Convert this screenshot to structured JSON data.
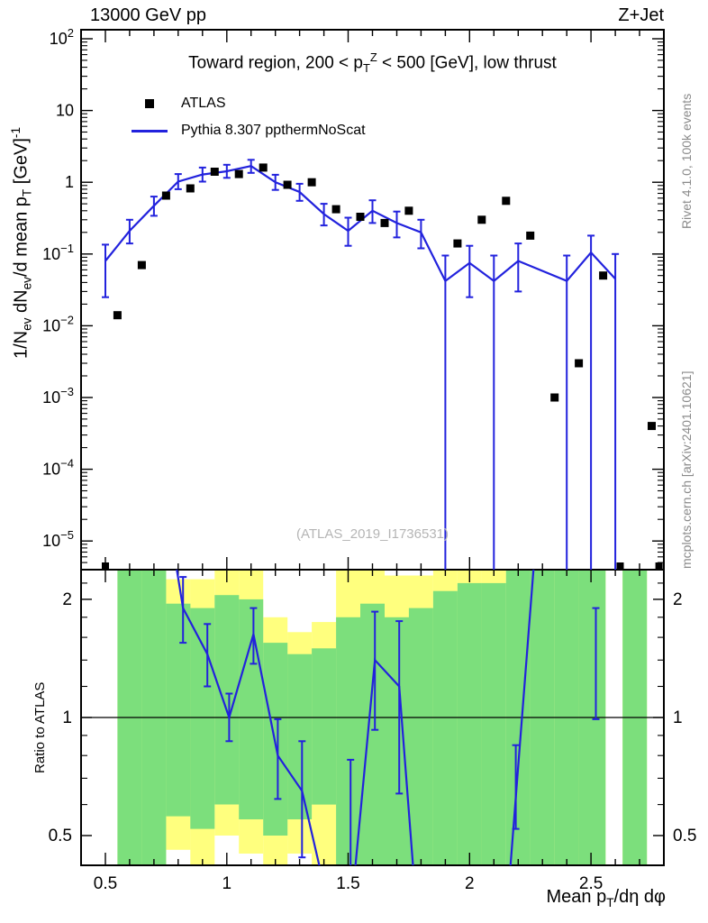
{
  "header": {
    "left": "13000 GeV pp",
    "right": "Z+Jet"
  },
  "watermark": "(ATLAS_2019_I1736531)",
  "side_notes": {
    "top": "Rivet 4.1.0,  100k events",
    "bottom": "mcplots.cern.ch [arXiv:2401.10621]"
  },
  "colors": {
    "mc": "#2222dd",
    "marker": "#000000",
    "band_inner": "#7cdf7c",
    "band_outer": "#ffff7e",
    "watermark": "#b5b5b5",
    "side_note": "#8a8a8a"
  },
  "chart_data": {
    "type": "line",
    "title": "Toward region, 200 < p_{T}^{Z} < 500 [GeV], low thrust",
    "ylabel": "1/N_{ev} dN_{ev}/d mean p_{T} [GeV]^{-1}",
    "xlabel": "Mean p_{T}/dη dφ",
    "ratio_label": "Ratio to ATLAS",
    "legend_position": "top-left",
    "x_range": [
      0.4,
      2.8
    ],
    "y_log_range": [
      -5.4,
      2.125
    ],
    "ratio_range": [
      0.42,
      2.38
    ],
    "x_ticks": [
      {
        "v": 0.5,
        "label": "0.5"
      },
      {
        "v": 1.0,
        "label": "1"
      },
      {
        "v": 1.5,
        "label": "1.5"
      },
      {
        "v": 2.0,
        "label": "2"
      },
      {
        "v": 2.5,
        "label": "2.5"
      }
    ],
    "main_y_tick_exponents": [
      2,
      1,
      0,
      -1,
      -2,
      -3,
      -4,
      -5
    ],
    "ratio_ticks": {
      "major": [
        {
          "v": 0.5,
          "label": "0.5"
        },
        {
          "v": 1.0,
          "label": "1"
        },
        {
          "v": 2.0,
          "label": "2"
        }
      ],
      "minor": [
        0.6,
        0.7,
        0.8,
        0.9,
        1.2,
        1.4,
        1.6,
        1.8,
        2.2
      ]
    },
    "series": [
      {
        "name": "ATLAS",
        "type": "scatter",
        "marker": "filled-square",
        "points": [
          [
            0.55,
            0.014
          ],
          [
            0.65,
            0.07
          ],
          [
            0.75,
            0.65
          ],
          [
            0.85,
            0.82
          ],
          [
            0.95,
            1.4
          ],
          [
            1.05,
            1.3
          ],
          [
            1.15,
            1.6
          ],
          [
            1.25,
            0.92
          ],
          [
            1.35,
            1.0
          ],
          [
            1.45,
            0.42
          ],
          [
            1.55,
            0.33
          ],
          [
            1.65,
            0.27
          ],
          [
            1.75,
            0.4
          ],
          [
            1.95,
            0.14
          ],
          [
            2.05,
            0.3
          ],
          [
            2.15,
            0.55
          ],
          [
            2.25,
            0.18
          ],
          [
            2.35,
            0.001
          ],
          [
            2.45,
            0.003
          ],
          [
            2.55,
            0.05
          ],
          [
            2.75,
            0.0004
          ]
        ],
        "clipped_below_axis_x": [
          0.5,
          2.62,
          2.78
        ]
      },
      {
        "name": "Pythia 8.307 ppthermNoScat",
        "type": "line-errorbar",
        "points": [
          {
            "x": 0.5,
            "y": 0.08,
            "lo": 0.025,
            "hi": 0.135
          },
          {
            "x": 0.6,
            "y": 0.21,
            "lo": 0.14,
            "hi": 0.3
          },
          {
            "x": 0.7,
            "y": 0.47,
            "lo": 0.34,
            "hi": 0.63
          },
          {
            "x": 0.8,
            "y": 1.02,
            "lo": 0.8,
            "hi": 1.3
          },
          {
            "x": 0.9,
            "y": 1.28,
            "lo": 1.02,
            "hi": 1.6
          },
          {
            "x": 1.0,
            "y": 1.42,
            "lo": 1.15,
            "hi": 1.75
          },
          {
            "x": 1.1,
            "y": 1.68,
            "lo": 1.35,
            "hi": 2.05
          },
          {
            "x": 1.2,
            "y": 1.0,
            "lo": 0.78,
            "hi": 1.27
          },
          {
            "x": 1.3,
            "y": 0.73,
            "lo": 0.55,
            "hi": 0.95
          },
          {
            "x": 1.4,
            "y": 0.36,
            "lo": 0.25,
            "hi": 0.5
          },
          {
            "x": 1.5,
            "y": 0.21,
            "lo": 0.13,
            "hi": 0.32
          },
          {
            "x": 1.6,
            "y": 0.4,
            "lo": 0.27,
            "hi": 0.56
          },
          {
            "x": 1.7,
            "y": 0.27,
            "lo": 0.17,
            "hi": 0.39
          },
          {
            "x": 1.8,
            "y": 0.2,
            "lo": 0.12,
            "hi": 0.3
          },
          {
            "x": 1.9,
            "y": 0.042,
            "lo": 0,
            "hi": 0.095
          },
          {
            "x": 2.0,
            "y": 0.075,
            "lo": 0.025,
            "hi": 0.13
          },
          {
            "x": 2.1,
            "y": 0.042,
            "lo": 0,
            "hi": 0.095
          },
          {
            "x": 2.2,
            "y": 0.08,
            "lo": 0.03,
            "hi": 0.14
          },
          {
            "x": 2.4,
            "y": 0.042,
            "lo": 0,
            "hi": 0.095
          },
          {
            "x": 2.5,
            "y": 0.105,
            "lo": 0,
            "hi": 0.18
          },
          {
            "x": 2.6,
            "y": 0.045,
            "lo": 0,
            "hi": 0.1
          }
        ]
      }
    ],
    "ratio": {
      "line_segments": [
        [
          [
            0.78,
            2.7
          ],
          [
            0.82,
            1.9
          ],
          [
            0.92,
            1.45
          ],
          [
            1.01,
            1.0
          ],
          [
            1.11,
            1.63
          ],
          [
            1.21,
            0.8
          ],
          [
            1.31,
            0.65
          ],
          [
            1.42,
            0.33
          ]
        ],
        [
          [
            1.52,
            0.36
          ],
          [
            1.61,
            1.4
          ],
          [
            1.71,
            1.2
          ],
          [
            1.78,
            0.33
          ]
        ],
        [
          [
            2.16,
            0.36
          ],
          [
            2.27,
            2.7
          ]
        ]
      ],
      "errorbars": [
        {
          "x": 0.82,
          "lo": 1.55,
          "hi": 2.28
        },
        {
          "x": 0.92,
          "lo": 1.2,
          "hi": 1.73
        },
        {
          "x": 1.01,
          "lo": 0.87,
          "hi": 1.15
        },
        {
          "x": 1.11,
          "lo": 1.37,
          "hi": 1.9
        },
        {
          "x": 1.21,
          "lo": 0.62,
          "hi": 0.99
        },
        {
          "x": 1.31,
          "lo": 0.44,
          "hi": 0.87
        },
        {
          "x": 1.51,
          "lo": 0.36,
          "hi": 0.78
        },
        {
          "x": 1.61,
          "lo": 0.93,
          "hi": 1.86
        },
        {
          "x": 1.71,
          "lo": 0.64,
          "hi": 1.76
        },
        {
          "x": 2.19,
          "lo": 0.52,
          "hi": 0.85
        },
        {
          "x": 2.52,
          "lo": 0.99,
          "hi": 1.9
        }
      ],
      "bands": [
        {
          "x0": 0.55,
          "x1": 0.65,
          "outer": [
            0.42,
            2.38
          ],
          "inner": [
            0.42,
            2.38
          ]
        },
        {
          "x0": 0.65,
          "x1": 0.75,
          "outer": [
            0.42,
            2.38
          ],
          "inner": [
            0.42,
            2.38
          ]
        },
        {
          "x0": 0.75,
          "x1": 0.85,
          "outer": [
            0.46,
            2.25
          ],
          "inner": [
            0.56,
            1.95
          ]
        },
        {
          "x0": 0.85,
          "x1": 0.95,
          "outer": [
            0.42,
            2.25
          ],
          "inner": [
            0.52,
            1.9
          ]
        },
        {
          "x0": 0.95,
          "x1": 1.05,
          "outer": [
            0.5,
            2.38
          ],
          "inner": [
            0.6,
            2.05
          ]
        },
        {
          "x0": 1.05,
          "x1": 1.15,
          "outer": [
            0.45,
            2.38
          ],
          "inner": [
            0.55,
            2.0
          ]
        },
        {
          "x0": 1.15,
          "x1": 1.25,
          "outer": [
            0.42,
            1.8
          ],
          "inner": [
            0.5,
            1.55
          ]
        },
        {
          "x0": 1.25,
          "x1": 1.35,
          "outer": [
            0.45,
            1.65
          ],
          "inner": [
            0.55,
            1.45
          ]
        },
        {
          "x0": 1.35,
          "x1": 1.45,
          "outer": [
            0.42,
            1.75
          ],
          "inner": [
            0.6,
            1.5
          ]
        },
        {
          "x0": 1.45,
          "x1": 1.55,
          "outer": [
            0.42,
            2.38
          ],
          "inner": [
            0.42,
            1.8
          ]
        },
        {
          "x0": 1.55,
          "x1": 1.65,
          "outer": [
            0.42,
            2.38
          ],
          "inner": [
            0.42,
            1.95
          ]
        },
        {
          "x0": 1.65,
          "x1": 1.75,
          "outer": [
            0.42,
            2.3
          ],
          "inner": [
            0.42,
            1.8
          ]
        },
        {
          "x0": 1.75,
          "x1": 1.85,
          "outer": [
            0.42,
            2.3
          ],
          "inner": [
            0.42,
            1.9
          ]
        },
        {
          "x0": 1.85,
          "x1": 1.95,
          "outer": [
            0.42,
            2.38
          ],
          "inner": [
            0.42,
            2.1
          ]
        },
        {
          "x0": 1.95,
          "x1": 2.05,
          "outer": [
            0.42,
            2.38
          ],
          "inner": [
            0.42,
            2.2
          ]
        },
        {
          "x0": 2.05,
          "x1": 2.15,
          "outer": [
            0.42,
            2.38
          ],
          "inner": [
            0.42,
            2.2
          ]
        },
        {
          "x0": 2.15,
          "x1": 2.25,
          "outer": [
            0.42,
            2.38
          ],
          "inner": [
            0.42,
            2.38
          ]
        },
        {
          "x0": 2.25,
          "x1": 2.35,
          "outer": [
            0.42,
            2.38
          ],
          "inner": [
            0.42,
            2.38
          ]
        },
        {
          "x0": 2.35,
          "x1": 2.45,
          "outer": [
            0.42,
            2.38
          ],
          "inner": [
            0.42,
            2.38
          ]
        },
        {
          "x0": 2.45,
          "x1": 2.56,
          "outer": [
            0.42,
            2.38
          ],
          "inner": [
            0.42,
            2.38
          ]
        },
        {
          "x0": 2.63,
          "x1": 2.73,
          "outer": [
            0.42,
            2.38
          ],
          "inner": [
            0.42,
            2.38
          ]
        }
      ]
    }
  }
}
